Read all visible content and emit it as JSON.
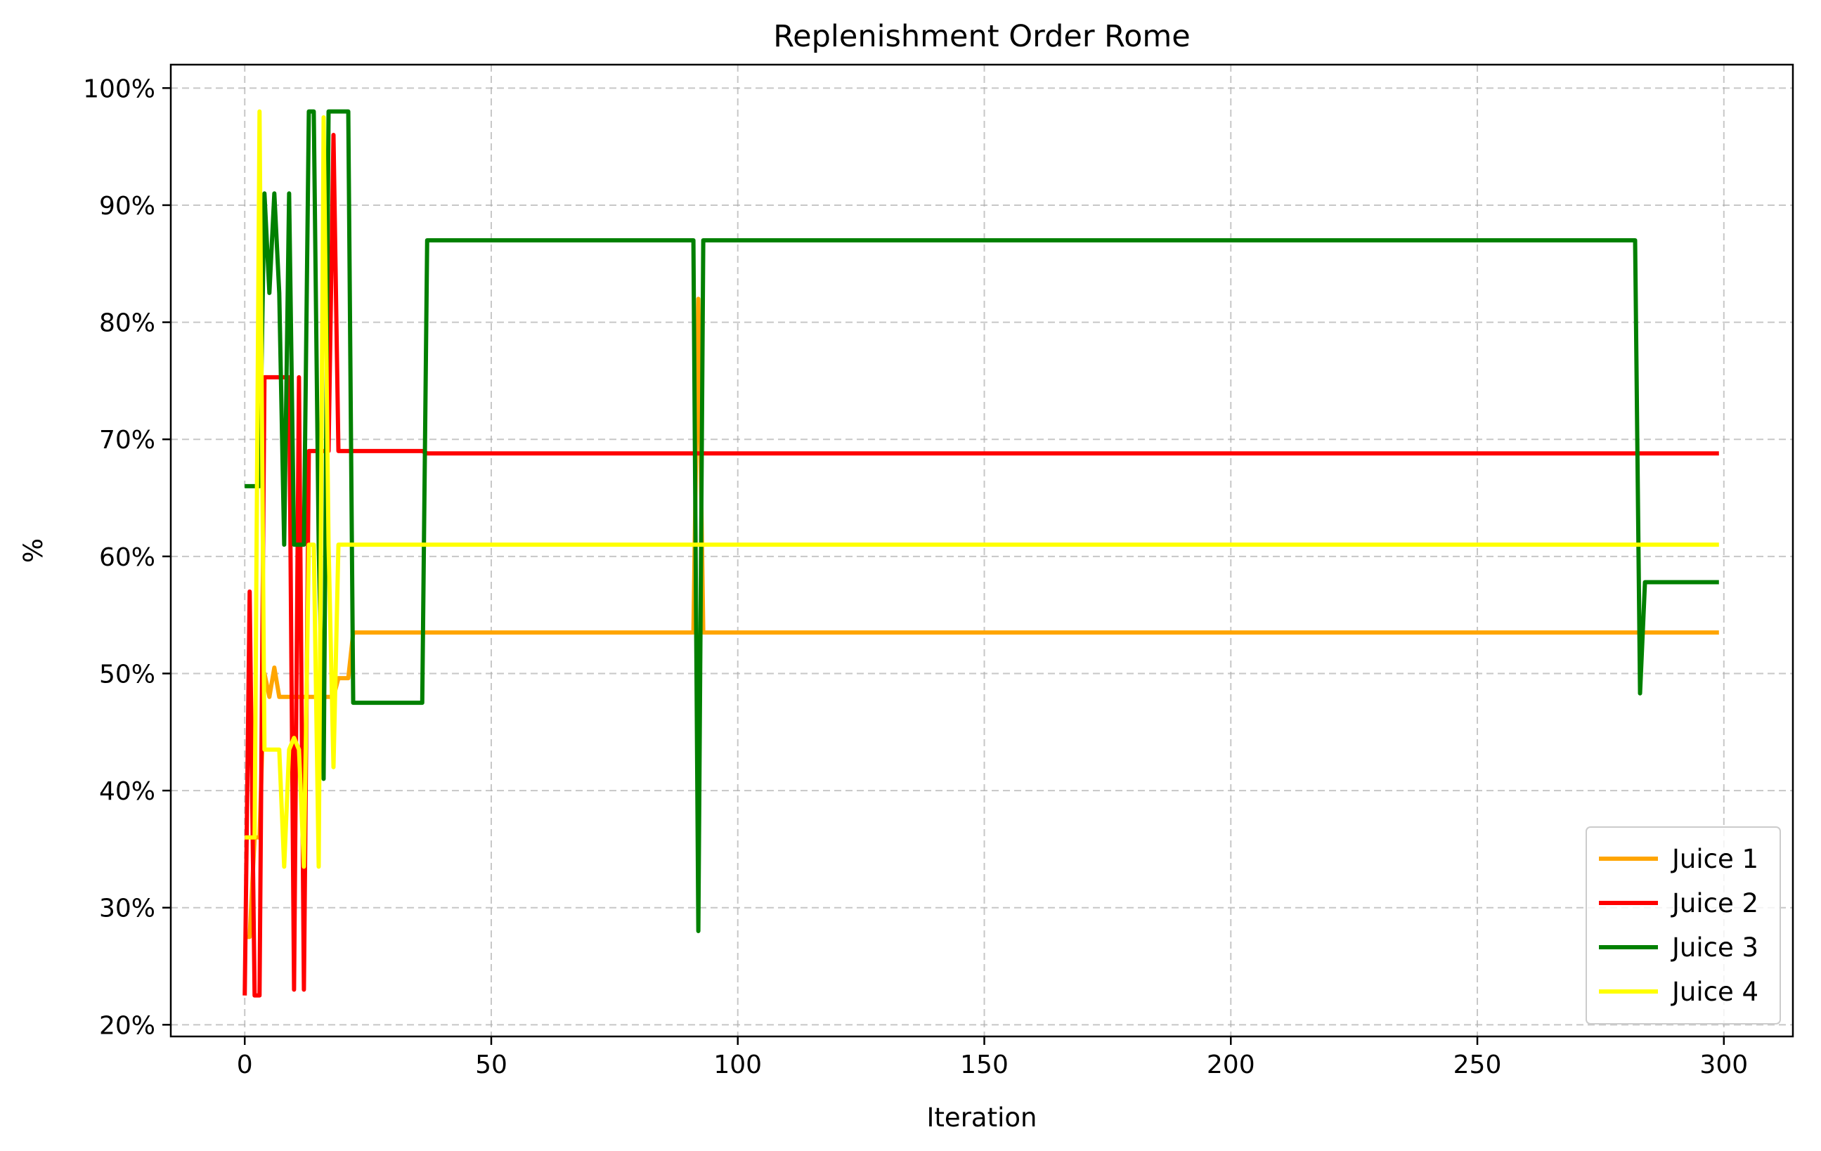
{
  "chart_data": {
    "type": "line",
    "title": "Replenishment Order Rome",
    "xlabel": "Iteration",
    "ylabel": "%",
    "xlim": [
      -15,
      314
    ],
    "ylim": [
      19,
      102
    ],
    "xticks": [
      0,
      50,
      100,
      150,
      200,
      250,
      300
    ],
    "yticks": [
      20,
      30,
      40,
      50,
      60,
      70,
      80,
      90,
      100
    ],
    "ytick_format": "{v}%",
    "grid": true,
    "legend_position": "lower-right",
    "series": [
      {
        "name": "Juice 1",
        "color": "#FFA500",
        "points": [
          [
            0,
            27.5
          ],
          [
            1,
            27.5
          ],
          [
            2,
            36
          ],
          [
            3,
            36
          ],
          [
            4,
            50
          ],
          [
            5,
            48
          ],
          [
            6,
            50.5
          ],
          [
            7,
            48
          ],
          [
            8,
            48
          ],
          [
            9,
            48
          ],
          [
            10,
            48
          ],
          [
            11,
            48
          ],
          [
            12,
            48
          ],
          [
            13,
            48
          ],
          [
            14,
            48
          ],
          [
            15,
            48
          ],
          [
            16,
            48
          ],
          [
            17,
            48
          ],
          [
            18,
            48
          ],
          [
            19,
            49.6
          ],
          [
            20,
            49.6
          ],
          [
            21,
            49.6
          ],
          [
            22,
            53.5
          ],
          [
            91,
            53.5
          ],
          [
            92,
            82
          ],
          [
            93,
            53.5
          ],
          [
            299,
            53.5
          ]
        ]
      },
      {
        "name": "Juice 2",
        "color": "#FF0000",
        "points": [
          [
            0,
            22.5
          ],
          [
            1,
            57
          ],
          [
            2,
            22.5
          ],
          [
            3,
            22.5
          ],
          [
            4,
            75.3
          ],
          [
            9,
            75.3
          ],
          [
            10,
            23
          ],
          [
            11,
            75.3
          ],
          [
            12,
            23
          ],
          [
            13,
            69
          ],
          [
            14,
            69
          ],
          [
            15,
            69
          ],
          [
            16,
            69
          ],
          [
            17,
            69
          ],
          [
            18,
            96
          ],
          [
            19,
            69
          ],
          [
            36,
            69
          ],
          [
            37,
            68.8
          ],
          [
            299,
            68.8
          ]
        ]
      },
      {
        "name": "Juice 3",
        "color": "#008000",
        "points": [
          [
            0,
            66
          ],
          [
            1,
            66
          ],
          [
            2,
            66
          ],
          [
            3,
            66
          ],
          [
            4,
            91
          ],
          [
            5,
            82.5
          ],
          [
            6,
            91
          ],
          [
            7,
            82.5
          ],
          [
            8,
            61
          ],
          [
            9,
            91
          ],
          [
            10,
            61
          ],
          [
            11,
            61
          ],
          [
            12,
            61
          ],
          [
            13,
            98
          ],
          [
            14,
            98
          ],
          [
            15,
            61
          ],
          [
            16,
            41
          ],
          [
            17,
            98
          ],
          [
            21,
            98
          ],
          [
            22,
            47.5
          ],
          [
            36,
            47.5
          ],
          [
            37,
            87
          ],
          [
            91,
            87
          ],
          [
            92,
            28
          ],
          [
            93,
            87
          ],
          [
            282,
            87
          ],
          [
            283,
            48.3
          ],
          [
            284,
            57.8
          ],
          [
            299,
            57.8
          ]
        ]
      },
      {
        "name": "Juice 4",
        "color": "#FFFF00",
        "points": [
          [
            0,
            36
          ],
          [
            1,
            36
          ],
          [
            2,
            36
          ],
          [
            3,
            98
          ],
          [
            4,
            43.5
          ],
          [
            5,
            43.5
          ],
          [
            6,
            43.5
          ],
          [
            7,
            43.5
          ],
          [
            8,
            33.5
          ],
          [
            9,
            43.5
          ],
          [
            10,
            44.5
          ],
          [
            11,
            43.5
          ],
          [
            12,
            33.5
          ],
          [
            13,
            61
          ],
          [
            14,
            61
          ],
          [
            15,
            33.5
          ],
          [
            16,
            97.5
          ],
          [
            17,
            61
          ],
          [
            18,
            42
          ],
          [
            19,
            61
          ],
          [
            299,
            61
          ]
        ]
      }
    ]
  }
}
